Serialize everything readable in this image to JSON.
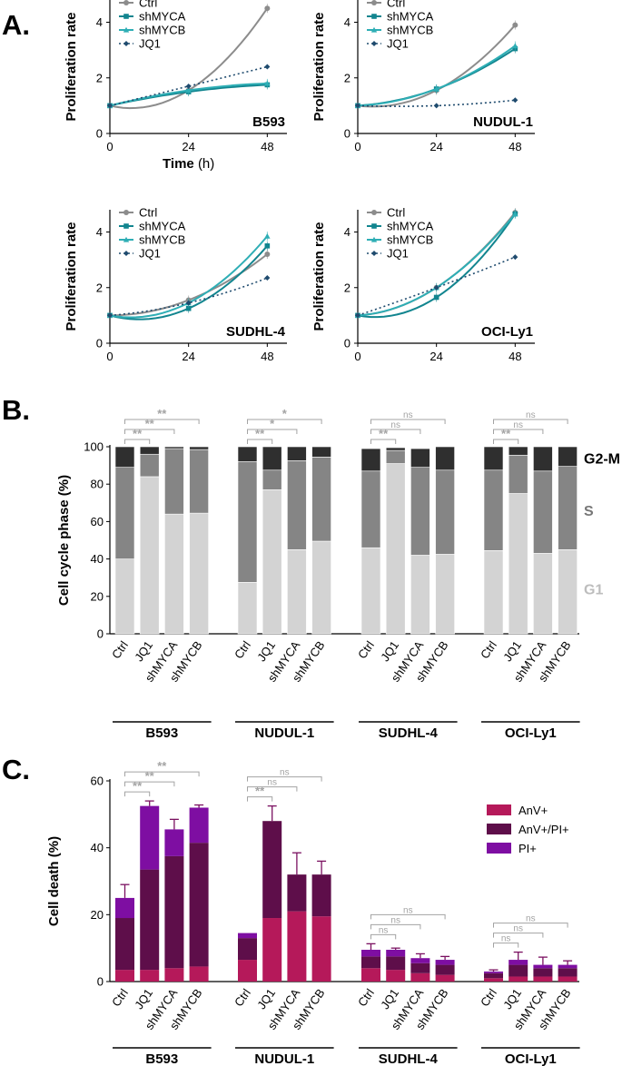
{
  "colors": {
    "ctrl": "#8c8c8c",
    "shMYCA": "#12858f",
    "shMYCB": "#2eaeb5",
    "jq1": "#1f4b6e",
    "g1": "#d3d3d3",
    "s": "#858585",
    "g2m": "#2f2f2f",
    "anv": "#b5195a",
    "anvpi": "#5e0e4a",
    "pi": "#7e0ea2",
    "sig": "#a3a3a3"
  },
  "panels": {
    "a": "A.",
    "b": "B.",
    "c": "C."
  },
  "chart_data": [
    {
      "type": "line",
      "panel": "A",
      "title": "B593",
      "xlabel": "Time (h)",
      "ylabel": "Proliferation rate",
      "x": [
        0,
        24,
        48
      ],
      "xlim": [
        0,
        54
      ],
      "ylim": [
        0,
        4.8
      ],
      "xticks": [
        "0",
        "24",
        "48"
      ],
      "yticks": [
        "0",
        "2",
        "4"
      ],
      "legend": [
        "Ctrl",
        "shMYCA",
        "shMYCB",
        "JQ1"
      ],
      "series": [
        {
          "name": "Ctrl",
          "values": [
            1.0,
            1.55,
            4.5
          ]
        },
        {
          "name": "shMYCA",
          "values": [
            1.0,
            1.5,
            1.75
          ]
        },
        {
          "name": "shMYCB",
          "values": [
            1.0,
            1.55,
            1.8
          ]
        },
        {
          "name": "JQ1",
          "values": [
            1.0,
            1.7,
            2.4
          ]
        }
      ]
    },
    {
      "type": "line",
      "panel": "A",
      "title": "NUDUL-1",
      "xlabel": "",
      "ylabel": "Proliferation rate",
      "x": [
        0,
        24,
        48
      ],
      "xlim": [
        0,
        54
      ],
      "ylim": [
        0,
        4.8
      ],
      "xticks": [
        "0",
        "24",
        "48"
      ],
      "yticks": [
        "0",
        "2",
        "4"
      ],
      "legend": [
        "Ctrl",
        "shMYCA",
        "shMYCB",
        "JQ1"
      ],
      "series": [
        {
          "name": "Ctrl",
          "values": [
            1.0,
            1.55,
            3.9
          ]
        },
        {
          "name": "shMYCA",
          "values": [
            1.0,
            1.6,
            3.05
          ]
        },
        {
          "name": "shMYCB",
          "values": [
            1.0,
            1.6,
            3.15
          ]
        },
        {
          "name": "JQ1",
          "values": [
            1.0,
            1.0,
            1.2
          ]
        }
      ]
    },
    {
      "type": "line",
      "panel": "A",
      "title": "SUDHL-4",
      "xlabel": "",
      "ylabel": "Proliferation rate",
      "x": [
        0,
        24,
        48
      ],
      "xlim": [
        0,
        54
      ],
      "ylim": [
        0,
        4.8
      ],
      "xticks": [
        "0",
        "24",
        "48"
      ],
      "yticks": [
        "0",
        "2",
        "4"
      ],
      "legend": [
        "Ctrl",
        "shMYCA",
        "shMYCB",
        "JQ1"
      ],
      "series": [
        {
          "name": "Ctrl",
          "values": [
            1.0,
            1.55,
            3.2
          ]
        },
        {
          "name": "shMYCA",
          "values": [
            1.0,
            1.25,
            3.5
          ]
        },
        {
          "name": "shMYCB",
          "values": [
            1.0,
            1.45,
            3.85
          ]
        },
        {
          "name": "JQ1",
          "values": [
            1.0,
            1.45,
            2.35
          ]
        }
      ]
    },
    {
      "type": "line",
      "panel": "A",
      "title": "OCI-Ly1",
      "xlabel": "",
      "ylabel": "Proliferation rate",
      "x": [
        0,
        24,
        48
      ],
      "xlim": [
        0,
        54
      ],
      "ylim": [
        0,
        4.8
      ],
      "xticks": [
        "0",
        "24",
        "48"
      ],
      "yticks": [
        "0",
        "2",
        "4"
      ],
      "legend": [
        "Ctrl",
        "shMYCA",
        "shMYCB",
        "JQ1"
      ],
      "series": [
        {
          "name": "Ctrl",
          "values": [
            1.0,
            2.0,
            4.7
          ]
        },
        {
          "name": "shMYCA",
          "values": [
            1.0,
            1.65,
            4.65
          ]
        },
        {
          "name": "shMYCB",
          "values": [
            1.0,
            2.0,
            4.65
          ]
        },
        {
          "name": "JQ1",
          "values": [
            1.0,
            2.0,
            3.1
          ]
        }
      ]
    },
    {
      "type": "bar",
      "stacked": true,
      "panel": "B",
      "ylabel": "Cell cycle phase (%)",
      "ylim": [
        0,
        100
      ],
      "yticks": [
        "0",
        "20",
        "40",
        "60",
        "80",
        "100"
      ],
      "categories": [
        "Ctrl",
        "JQ1",
        "shMYCA",
        "shMYCB"
      ],
      "groups": [
        "B593",
        "NUDUL-1",
        "SUDHL-4",
        "OCI-Ly1"
      ],
      "phase_labels": [
        "G2-M",
        "S",
        "G1"
      ],
      "series": [
        {
          "name": "G1",
          "values": [
            [
              40,
              84,
              64,
              64.5
            ],
            [
              27.5,
              77,
              45,
              49.5
            ],
            [
              46,
              91,
              42,
              42.5
            ],
            [
              44.5,
              75,
              43,
              45
            ]
          ]
        },
        {
          "name": "S",
          "values": [
            [
              49,
              12,
              35,
              34
            ],
            [
              64.5,
              10.5,
              47.5,
              45
            ],
            [
              41,
              7,
              47,
              45
            ],
            [
              43,
              20.5,
              44,
              44.5
            ]
          ]
        },
        {
          "name": "G2-M",
          "values": [
            [
              11,
              4,
              1,
              1.5
            ],
            [
              8,
              12.5,
              7.5,
              5.5
            ],
            [
              12,
              1.5,
              10,
              12.5
            ],
            [
              12.5,
              4.5,
              13,
              10.5
            ]
          ]
        }
      ],
      "significance": [
        [
          "**",
          "**",
          "**"
        ],
        [
          "**",
          "*",
          "*"
        ],
        [
          "**",
          "ns",
          "ns"
        ],
        [
          "**",
          "ns",
          "ns"
        ]
      ]
    },
    {
      "type": "bar",
      "stacked": true,
      "panel": "C",
      "ylabel": "Cell death  (%)",
      "ylim": [
        0,
        60
      ],
      "yticks": [
        "0",
        "20",
        "40",
        "60"
      ],
      "categories": [
        "Ctrl",
        "JQ1",
        "shMYCA",
        "shMYCB"
      ],
      "groups": [
        "B593",
        "NUDUL-1",
        "SUDHL-4",
        "OCI-Ly1"
      ],
      "legend": [
        "AnV+",
        "AnV+/PI+",
        "PI+"
      ],
      "series": [
        {
          "name": "AnV+",
          "values": [
            [
              3.5,
              3.5,
              4,
              4.5
            ],
            [
              6.5,
              19,
              21,
              19.5
            ],
            [
              4,
              3.5,
              2.5,
              2
            ],
            [
              1,
              1.5,
              1.5,
              1.5
            ]
          ]
        },
        {
          "name": "AnV+/PI+",
          "values": [
            [
              15.5,
              30,
              33.5,
              37
            ],
            [
              6.5,
              29,
              11,
              12.5
            ],
            [
              3.5,
              4,
              3,
              3
            ],
            [
              1.5,
              3.5,
              2.5,
              2.5
            ]
          ]
        },
        {
          "name": "PI+",
          "values": [
            [
              6,
              19,
              8,
              10.5
            ],
            [
              1.5,
              0,
              0,
              0
            ],
            [
              2,
              2,
              1.5,
              1.5
            ],
            [
              0.5,
              1.5,
              1,
              1
            ]
          ]
        }
      ],
      "errors": [
        [
          4,
          1.5,
          3,
          0.8
        ],
        [
          0,
          4.5,
          6.5,
          4
        ],
        [
          1.8,
          0.5,
          1.3,
          1
        ],
        [
          0.5,
          2.3,
          2.3,
          1.2
        ]
      ],
      "significance": [
        [
          "**",
          "**",
          "**"
        ],
        [
          "**",
          "ns",
          "ns"
        ],
        [
          "ns",
          "ns",
          "ns"
        ],
        [
          "ns",
          "ns",
          "ns"
        ]
      ]
    }
  ]
}
